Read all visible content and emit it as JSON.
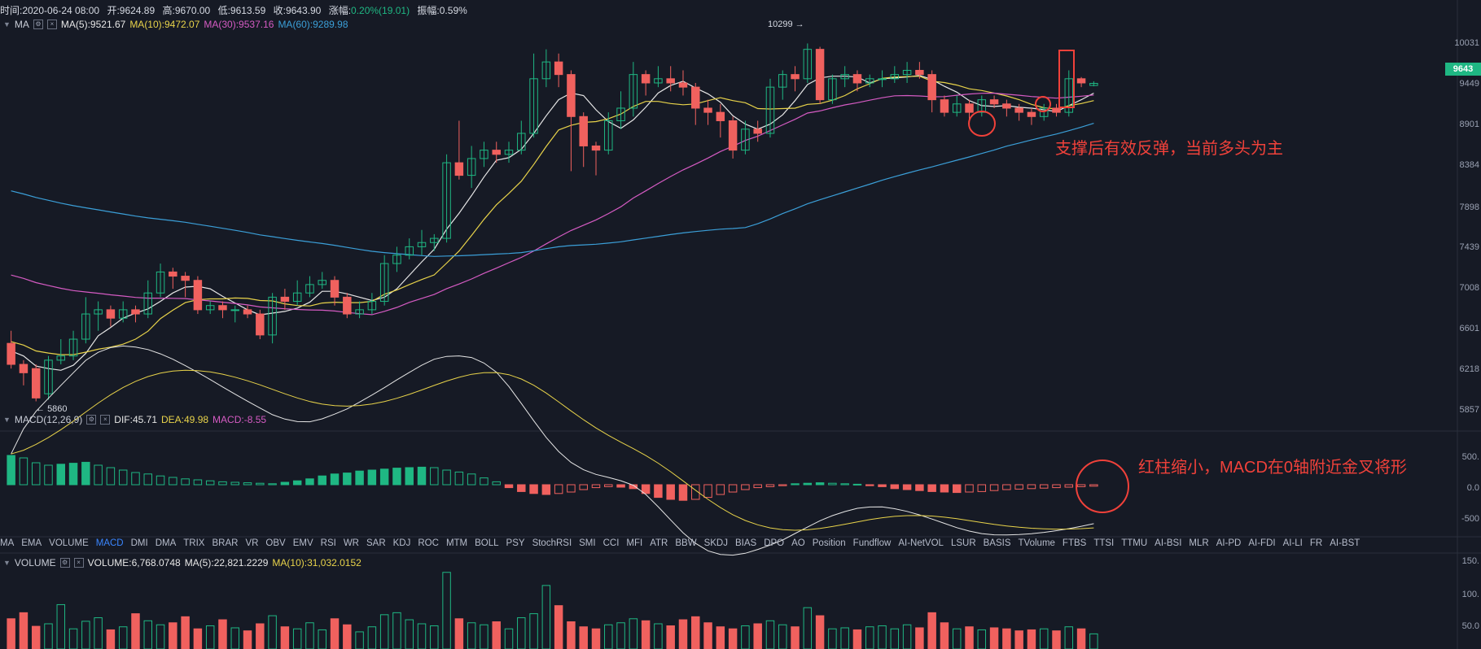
{
  "header": {
    "time": "时间:2020-06-24 08:00",
    "open": "开:9624.89",
    "high": "高:9670.00",
    "low": "低:9613.59",
    "close": "收:9643.90",
    "change_label": "涨幅:",
    "change_value": "0.20%(19.01)",
    "amplitude": "振幅:0.59%"
  },
  "ma_legend": {
    "name": "MA",
    "ma5": "MA(5):9521.67",
    "ma10": "MA(10):9472.07",
    "ma30": "MA(30):9537.16",
    "ma60": "MA(60):9289.98"
  },
  "macd_legend": {
    "name": "MACD(12,26,9)",
    "dif": "DIF:45.71",
    "dea": "DEA:49.98",
    "macd": "MACD:-8.55"
  },
  "volume_legend": {
    "name": "VOLUME",
    "volume": "VOLUME:6,768.0748",
    "ma5": "MA(5):22,821.2229",
    "ma10": "MA(10):31,032.0152"
  },
  "price_axis": [
    "10031",
    "9449",
    "8901",
    "8384",
    "7898",
    "7439",
    "7008",
    "6601",
    "6218",
    "5857"
  ],
  "current_price": "9643",
  "macd_axis": [
    "500.",
    "0.0",
    "-500"
  ],
  "volume_axis": [
    "150.",
    "100.",
    "50.0"
  ],
  "annotations": {
    "high_marker": "10299",
    "low_marker": "5860",
    "note_price": "支撑后有效反弹，当前多头为主",
    "note_macd": "红柱缩小，MACD在0轴附近金叉将形"
  },
  "indicator_tabs": [
    "MA",
    "EMA",
    "VOLUME",
    "MACD",
    "DMI",
    "DMA",
    "TRIX",
    "BRAR",
    "VR",
    "OBV",
    "EMV",
    "RSI",
    "WR",
    "SAR",
    "KDJ",
    "ROC",
    "MTM",
    "BOLL",
    "PSY",
    "StochRSI",
    "SMI",
    "CCI",
    "MFI",
    "ATR",
    "BBW",
    "SKDJ",
    "BIAS",
    "DPO",
    "AO",
    "Position",
    "Fundflow",
    "AI-NetVOL",
    "LSUR",
    "BASIS",
    "TVolume",
    "FTBS",
    "TTSI",
    "TTMU",
    "AI-BSI",
    "MLR",
    "AI-PD",
    "AI-FDI",
    "AI-LI",
    "FR",
    "AI-BST"
  ],
  "active_tab": "MACD",
  "colors": {
    "background": "#161a25",
    "up": "#1fb783",
    "down": "#f0615e",
    "ma5": "#e6e6e6",
    "ma10": "#e8d34a",
    "ma30": "#d55bc3",
    "ma60": "#3b9fd8",
    "annotation": "#f0413a"
  },
  "chart_data": {
    "type": "candlestick",
    "price_range": [
      5700,
      10250
    ],
    "candles": [
      [
        6550,
        6300,
        6700,
        6250
      ],
      [
        6300,
        6200,
        6350,
        6050
      ],
      [
        6250,
        5900,
        6300,
        5860
      ],
      [
        5950,
        6350,
        6400,
        5880
      ],
      [
        6350,
        6400,
        6600,
        6300
      ],
      [
        6400,
        6600,
        6700,
        6350
      ],
      [
        6600,
        6900,
        7100,
        6550
      ],
      [
        6900,
        6950,
        7050,
        6700
      ],
      [
        6950,
        6850,
        7000,
        6750
      ],
      [
        6850,
        6950,
        7050,
        6800
      ],
      [
        6950,
        6900,
        7000,
        6800
      ],
      [
        6900,
        7150,
        7300,
        6850
      ],
      [
        7150,
        7400,
        7500,
        7100
      ],
      [
        7400,
        7350,
        7450,
        7200
      ],
      [
        7350,
        7300,
        7400,
        7100
      ],
      [
        7300,
        6950,
        7350,
        6900
      ],
      [
        6950,
        7000,
        7050,
        6900
      ],
      [
        7000,
        6950,
        7050,
        6850
      ],
      [
        6950,
        6950,
        7000,
        6800
      ],
      [
        6950,
        6900,
        7000,
        6850
      ],
      [
        6900,
        6650,
        6950,
        6600
      ],
      [
        6650,
        7100,
        7150,
        6550
      ],
      [
        7100,
        7050,
        7200,
        6950
      ],
      [
        7050,
        7150,
        7300,
        7000
      ],
      [
        7150,
        7250,
        7350,
        7100
      ],
      [
        7250,
        7300,
        7400,
        7200
      ],
      [
        7300,
        7100,
        7350,
        7000
      ],
      [
        7100,
        6900,
        7150,
        6850
      ],
      [
        6900,
        6950,
        7050,
        6850
      ],
      [
        6950,
        7050,
        7150,
        6900
      ],
      [
        7050,
        7500,
        7600,
        7000
      ],
      [
        7500,
        7600,
        7700,
        7400
      ],
      [
        7600,
        7700,
        7800,
        7550
      ],
      [
        7700,
        7750,
        7900,
        7600
      ],
      [
        7750,
        7800,
        7850,
        7650
      ],
      [
        7800,
        8700,
        8800,
        7750
      ],
      [
        8700,
        8550,
        9200,
        8500
      ],
      [
        8550,
        8750,
        8900,
        8400
      ],
      [
        8750,
        8850,
        8950,
        8650
      ],
      [
        8850,
        8800,
        8950,
        8700
      ],
      [
        8800,
        8850,
        8950,
        8700
      ],
      [
        8850,
        9050,
        9200,
        8800
      ],
      [
        9050,
        9700,
        10000,
        9000
      ],
      [
        9700,
        9900,
        10050,
        9600
      ],
      [
        9900,
        9750,
        10000,
        9600
      ],
      [
        9750,
        9250,
        9800,
        8600
      ],
      [
        9250,
        8900,
        9300,
        8650
      ],
      [
        8900,
        8850,
        8950,
        8550
      ],
      [
        8850,
        9200,
        9300,
        8800
      ],
      [
        9200,
        9350,
        9550,
        9100
      ],
      [
        9350,
        9750,
        9900,
        9250
      ],
      [
        9750,
        9650,
        9800,
        9500
      ],
      [
        9650,
        9700,
        9850,
        9600
      ],
      [
        9700,
        9650,
        9850,
        9550
      ],
      [
        9650,
        9600,
        9800,
        9500
      ],
      [
        9600,
        9350,
        9650,
        9150
      ],
      [
        9350,
        9300,
        9450,
        9150
      ],
      [
        9300,
        9200,
        9400,
        9000
      ],
      [
        9200,
        8850,
        9250,
        8750
      ],
      [
        8850,
        9100,
        9200,
        8800
      ],
      [
        9100,
        9050,
        9200,
        8950
      ],
      [
        9050,
        9600,
        9700,
        9000
      ],
      [
        9600,
        9750,
        9800,
        9450
      ],
      [
        9750,
        9700,
        9850,
        9550
      ],
      [
        9700,
        10050,
        10120,
        9650
      ],
      [
        10050,
        9450,
        10080,
        9400
      ],
      [
        9450,
        9700,
        9750,
        9400
      ],
      [
        9700,
        9750,
        9850,
        9600
      ],
      [
        9750,
        9650,
        9800,
        9550
      ],
      [
        9650,
        9700,
        9750,
        9600
      ],
      [
        9700,
        9700,
        9800,
        9600
      ],
      [
        9700,
        9750,
        9850,
        9650
      ],
      [
        9750,
        9800,
        9900,
        9650
      ],
      [
        9800,
        9750,
        9900,
        9700
      ],
      [
        9750,
        9450,
        9800,
        9300
      ],
      [
        9450,
        9300,
        9500,
        9250
      ],
      [
        9300,
        9400,
        9500,
        9250
      ],
      [
        9400,
        9300,
        9450,
        9200
      ],
      [
        9300,
        9450,
        9500,
        9250
      ],
      [
        9450,
        9400,
        9500,
        9350
      ],
      [
        9400,
        9350,
        9450,
        9250
      ],
      [
        9350,
        9300,
        9400,
        9200
      ],
      [
        9300,
        9250,
        9350,
        9150
      ],
      [
        9250,
        9350,
        9400,
        9200
      ],
      [
        9350,
        9300,
        9400,
        9250
      ],
      [
        9300,
        9700,
        9800,
        9250
      ],
      [
        9700,
        9650,
        9720,
        9600
      ],
      [
        9620,
        9645,
        9670,
        9610
      ]
    ],
    "macd_hist": [
      60,
      55,
      45,
      40,
      42,
      44,
      46,
      40,
      35,
      30,
      25,
      22,
      18,
      15,
      12,
      10,
      8,
      6,
      5,
      4,
      3,
      2,
      5,
      8,
      12,
      18,
      22,
      24,
      28,
      30,
      32,
      34,
      35,
      36,
      35,
      30,
      26,
      22,
      14,
      6,
      -6,
      -14,
      -18,
      -20,
      -18,
      -15,
      -10,
      -6,
      -4,
      -5,
      -8,
      -18,
      -26,
      -30,
      -32,
      -30,
      -26,
      -20,
      -15,
      -10,
      -6,
      -4,
      -2,
      2,
      3,
      4,
      3,
      2,
      1,
      -2,
      -4,
      -8,
      -10,
      -12,
      -14,
      -15,
      -16,
      -15,
      -14,
      -12,
      -10,
      -9,
      -8,
      -7,
      -6,
      -5,
      -4,
      -3
    ],
    "volume": [
      60,
      72,
      45,
      50,
      88,
      40,
      55,
      62,
      38,
      44,
      70,
      56,
      48,
      52,
      64,
      40,
      46,
      58,
      42,
      36,
      50,
      66,
      44,
      40,
      52,
      38,
      60,
      48,
      34,
      44,
      68,
      72,
      58,
      50,
      46,
      152,
      60,
      52,
      48,
      54,
      40,
      62,
      70,
      126,
      86,
      54,
      44,
      40,
      48,
      52,
      60,
      56,
      50,
      46,
      58,
      64,
      52,
      44,
      40,
      46,
      50,
      56,
      48,
      44,
      82,
      66,
      40,
      42,
      38,
      44,
      46,
      40,
      48,
      42,
      72,
      52,
      40,
      44,
      38,
      42,
      40,
      36,
      38,
      40,
      36,
      44,
      40,
      30
    ]
  }
}
